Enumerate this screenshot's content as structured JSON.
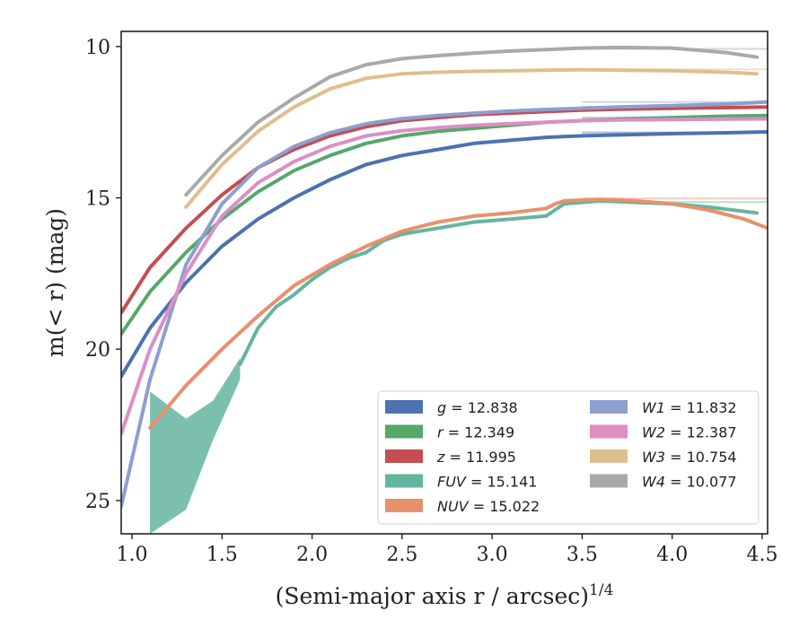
{
  "chart_data": {
    "type": "line",
    "xlabel": "(Semi-major axis r / arcsec)",
    "xlabel_sup": "1/4",
    "ylabel": "m(< r) (mag)",
    "xlim": [
      0.94,
      4.53
    ],
    "ylim": [
      26.1,
      9.5
    ],
    "y_inverted": true,
    "x_ticks": [
      "1.0",
      "1.5",
      "2.0",
      "2.5",
      "3.0",
      "3.5",
      "4.0",
      "4.5"
    ],
    "y_ticks": [
      "10",
      "15",
      "20",
      "25"
    ],
    "grid": false,
    "legend_position": "lower-right",
    "legend_columns": 2,
    "series": [
      {
        "name": "g = 12.838",
        "color": "#4c72b0",
        "x": [
          0.94,
          1.1,
          1.3,
          1.5,
          1.7,
          1.9,
          2.1,
          2.3,
          2.5,
          2.7,
          2.9,
          3.1,
          3.3,
          3.5,
          3.7,
          4.0,
          4.3,
          4.53
        ],
        "y": [
          20.9,
          19.3,
          17.8,
          16.6,
          15.7,
          15.0,
          14.4,
          13.9,
          13.6,
          13.4,
          13.2,
          13.1,
          13.0,
          12.95,
          12.92,
          12.88,
          12.85,
          12.82
        ],
        "model_y": 12.838
      },
      {
        "name": "r = 12.349",
        "color": "#55a868",
        "x": [
          0.94,
          1.1,
          1.3,
          1.5,
          1.7,
          1.9,
          2.1,
          2.3,
          2.5,
          2.7,
          2.9,
          3.1,
          3.3,
          3.5,
          3.7,
          4.0,
          4.3,
          4.53
        ],
        "y": [
          19.5,
          18.1,
          16.8,
          15.7,
          14.8,
          14.1,
          13.6,
          13.2,
          12.95,
          12.8,
          12.7,
          12.6,
          12.5,
          12.45,
          12.4,
          12.35,
          12.3,
          12.28
        ],
        "model_y": 12.349
      },
      {
        "name": "z = 11.995",
        "color": "#c44e52",
        "x": [
          0.94,
          1.1,
          1.3,
          1.5,
          1.7,
          1.9,
          2.1,
          2.3,
          2.5,
          2.7,
          2.9,
          3.1,
          3.3,
          3.5,
          3.7,
          4.0,
          4.3,
          4.53
        ],
        "y": [
          18.8,
          17.3,
          16.0,
          14.9,
          14.0,
          13.4,
          12.95,
          12.65,
          12.45,
          12.35,
          12.25,
          12.2,
          12.15,
          12.1,
          12.07,
          12.04,
          12.02,
          12.0
        ],
        "model_y": 11.995
      },
      {
        "name": "FUV = 15.141",
        "color": "#64b5a0",
        "x": [
          1.6,
          1.7,
          1.8,
          1.9,
          2.0,
          2.1,
          2.2,
          2.3,
          2.4,
          2.5,
          2.7,
          2.9,
          3.1,
          3.3,
          3.35,
          3.4,
          3.6,
          3.8,
          4.0,
          4.2,
          4.47
        ],
        "y": [
          20.5,
          19.3,
          18.6,
          18.2,
          17.7,
          17.3,
          17.0,
          16.8,
          16.4,
          16.2,
          16.0,
          15.8,
          15.7,
          15.6,
          15.4,
          15.2,
          15.1,
          15.15,
          15.2,
          15.3,
          15.5
        ],
        "band_x": [
          1.1,
          1.3,
          1.45,
          1.6
        ],
        "band_upper": [
          21.4,
          22.3,
          21.7,
          20.3
        ],
        "band_lower": [
          26.1,
          25.3,
          23.0,
          21.0
        ],
        "model_y": 15.141
      },
      {
        "name": "NUV = 15.022",
        "color": "#e8906c",
        "x": [
          1.1,
          1.3,
          1.5,
          1.7,
          1.9,
          2.1,
          2.3,
          2.5,
          2.7,
          2.9,
          3.1,
          3.3,
          3.35,
          3.4,
          3.6,
          3.8,
          4.0,
          4.2,
          4.4,
          4.53
        ],
        "y": [
          22.6,
          21.2,
          20.0,
          18.9,
          17.9,
          17.2,
          16.6,
          16.1,
          15.8,
          15.6,
          15.5,
          15.35,
          15.2,
          15.1,
          15.05,
          15.1,
          15.2,
          15.4,
          15.7,
          16.0
        ],
        "model_y": 15.022
      },
      {
        "name": "W1 = 11.832",
        "color": "#8c9fcf",
        "x": [
          0.94,
          1.1,
          1.3,
          1.5,
          1.7,
          1.9,
          2.1,
          2.3,
          2.5,
          2.7,
          2.9,
          3.1,
          3.3,
          3.5,
          3.7,
          4.0,
          4.3,
          4.53
        ],
        "y": [
          25.2,
          21.0,
          17.2,
          15.2,
          14.0,
          13.3,
          12.85,
          12.55,
          12.38,
          12.28,
          12.2,
          12.13,
          12.08,
          12.04,
          12.0,
          11.95,
          11.9,
          11.83
        ],
        "model_y": 11.832
      },
      {
        "name": "W2 = 12.387",
        "color": "#dd8ec5",
        "x": [
          0.94,
          1.1,
          1.3,
          1.5,
          1.7,
          1.9,
          2.1,
          2.3,
          2.5,
          2.7,
          2.9,
          3.1,
          3.3,
          3.5,
          3.7,
          4.0,
          4.3,
          4.53
        ],
        "y": [
          22.8,
          20.0,
          17.5,
          15.6,
          14.5,
          13.8,
          13.3,
          12.95,
          12.78,
          12.68,
          12.6,
          12.55,
          12.5,
          12.45,
          12.43,
          12.41,
          12.4,
          12.39
        ],
        "model_y": 12.387
      },
      {
        "name": "W3 = 10.754",
        "color": "#ddbf8e",
        "x": [
          1.3,
          1.5,
          1.7,
          1.9,
          2.1,
          2.3,
          2.5,
          2.7,
          2.9,
          3.1,
          3.3,
          3.5,
          3.7,
          4.0,
          4.3,
          4.47
        ],
        "y": [
          15.3,
          13.9,
          12.8,
          12.0,
          11.4,
          11.05,
          10.9,
          10.85,
          10.82,
          10.8,
          10.78,
          10.77,
          10.78,
          10.8,
          10.85,
          10.9
        ],
        "model_y": 10.754
      },
      {
        "name": "W4 = 10.077",
        "color": "#a9a9a9",
        "x": [
          1.3,
          1.5,
          1.7,
          1.9,
          2.1,
          2.3,
          2.5,
          2.7,
          2.9,
          3.1,
          3.3,
          3.5,
          3.7,
          4.0,
          4.3,
          4.47
        ],
        "y": [
          14.9,
          13.6,
          12.5,
          11.7,
          11.0,
          10.6,
          10.4,
          10.3,
          10.22,
          10.15,
          10.1,
          10.05,
          10.03,
          10.05,
          10.2,
          10.35
        ],
        "model_y": 10.077
      }
    ]
  }
}
